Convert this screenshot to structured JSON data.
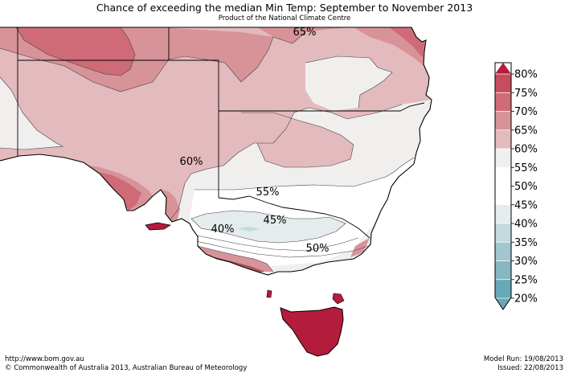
{
  "title": "Chance of exceeding the median Min Temp: September to November 2013",
  "subtitle": "Product of the National Climate Centre",
  "map_labels": [
    "65%",
    "60%",
    "55%",
    "45%",
    "40%",
    "50%"
  ],
  "legend": {
    "ticks": [
      "80%",
      "75%",
      "70%",
      "65%",
      "60%",
      "55%",
      "50%",
      "45%",
      "40%",
      "35%",
      "30%",
      "25%",
      "20%"
    ],
    "colors": [
      "#b41c3c",
      "#c44d5e",
      "#cf6b77",
      "#d89398",
      "#e3babe",
      "#f0efee",
      "#ffffff",
      "#ffffff",
      "#e4ecee",
      "#c4dadf",
      "#a2c6cd",
      "#85b7c1",
      "#68a8b6",
      "#68a8b6"
    ]
  },
  "footer": {
    "url": "http://www.bom.gov.au",
    "copyright": "©  Commonwealth of Australia 2013, Australian Bureau of Meteorology",
    "model_run": "Model Run: 19/08/2013",
    "issued": "Issued: 22/08/2013"
  }
}
